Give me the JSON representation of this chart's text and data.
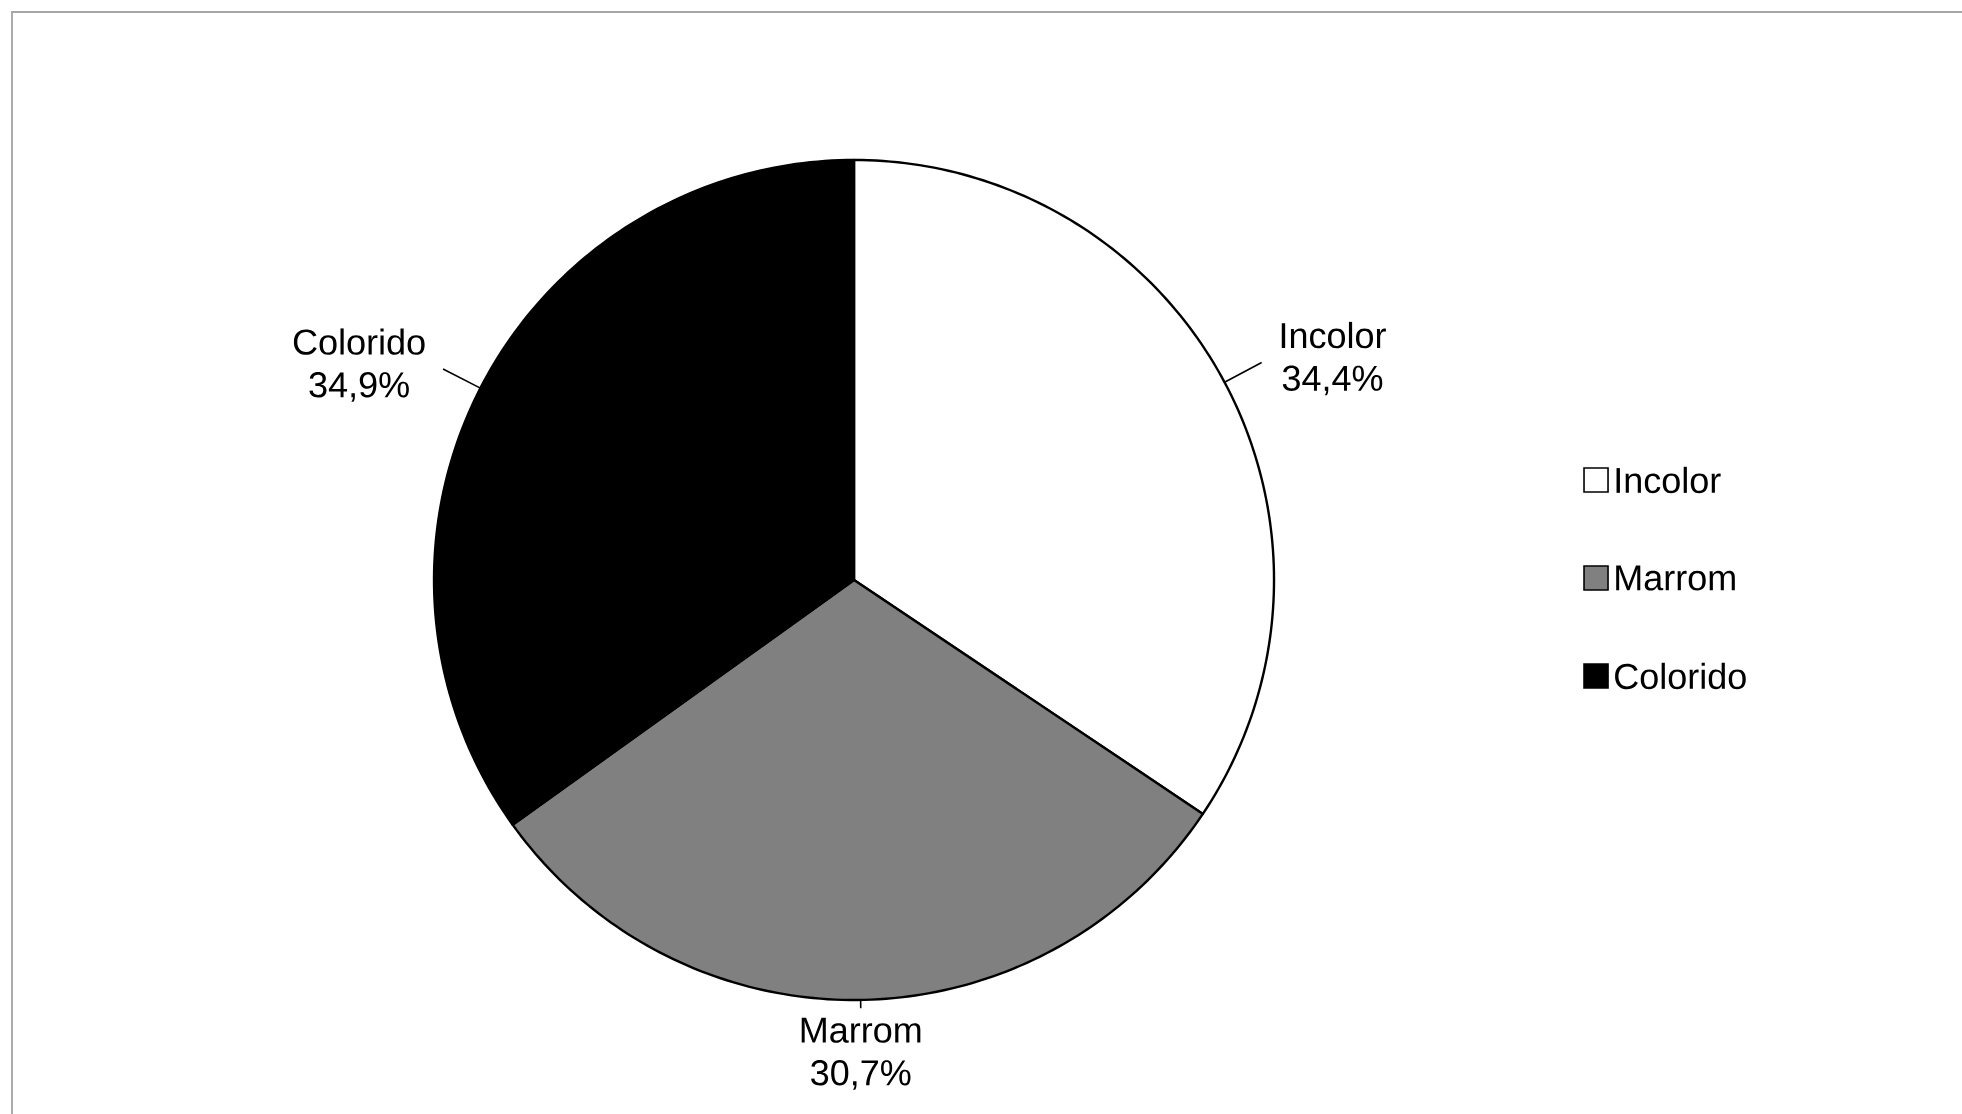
{
  "chart_data": {
    "type": "pie",
    "categories": [
      "Incolor",
      "Marrom",
      "Colorido"
    ],
    "values": [
      34.4,
      30.7,
      34.9
    ],
    "colors": [
      "#ffffff",
      "#808080",
      "#000000"
    ],
    "value_labels": [
      "34,4%",
      "30,7%",
      "34,9%"
    ],
    "legend": "right"
  }
}
